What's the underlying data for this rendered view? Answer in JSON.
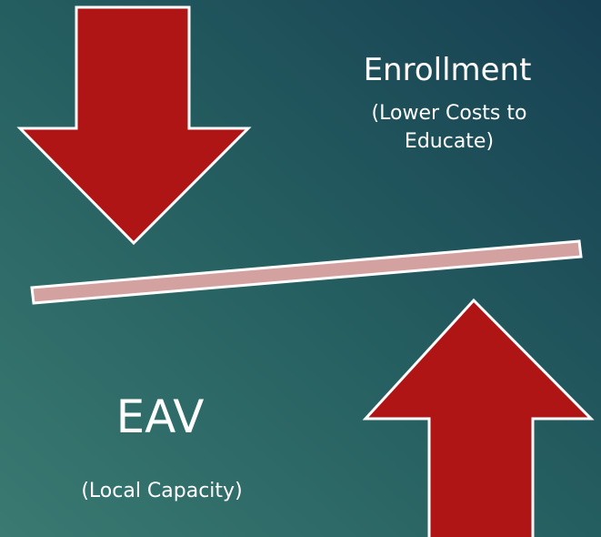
{
  "top_label": {
    "title": "Enrollment",
    "subtitle_line1": "(Lower Costs to",
    "subtitle_line2": "Educate)"
  },
  "bottom_label": {
    "title": "EAV",
    "subtitle": "(Local Capacity)"
  }
}
